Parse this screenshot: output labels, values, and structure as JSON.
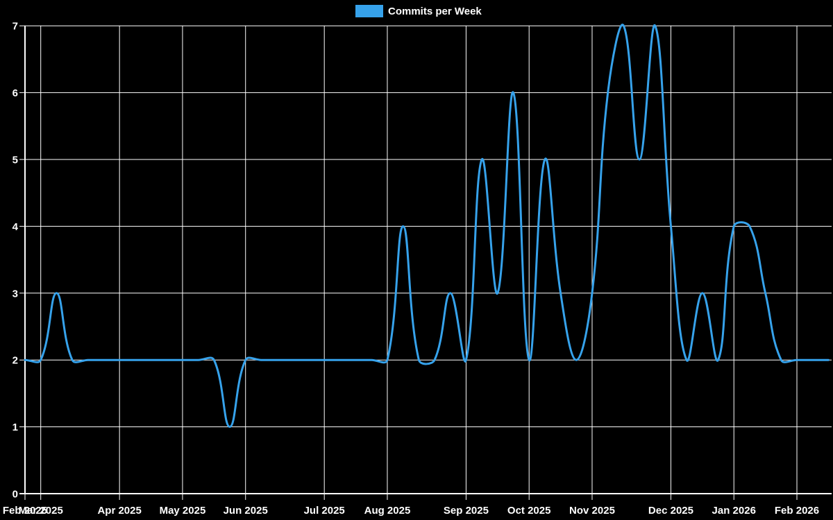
{
  "colors": {
    "background": "#000000",
    "grid": "#ffffff",
    "axis": "#ffffff",
    "text": "#ffffff",
    "line": "#36A2EB"
  },
  "chart_data": {
    "type": "line",
    "title": "",
    "legend_entries": [
      "Commits per Week"
    ],
    "legend_position": "top-center",
    "grid": true,
    "line_style": "smooth-bezier-tension-0.4",
    "x_unit": "week",
    "x_tick_labels": [
      "Feb 2025",
      "Mar 2025",
      "Apr 2025",
      "May 2025",
      "Jun 2025",
      "Jul 2025",
      "Aug 2025",
      "Sep 2025",
      "Oct 2025",
      "Nov 2025",
      "Dec 2025",
      "Jan 2026",
      "Feb 2026"
    ],
    "x_tick_week_index": [
      0,
      1,
      6,
      10,
      14,
      19,
      23,
      28,
      32,
      36,
      41,
      45,
      49
    ],
    "y_ticks": [
      0,
      1,
      2,
      3,
      4,
      5,
      6,
      7
    ],
    "ylim": [
      0,
      7
    ],
    "series": [
      {
        "name": "Commits per Week",
        "values": [
          2,
          2,
          3,
          2,
          2,
          2,
          2,
          2,
          2,
          2,
          2,
          2,
          2,
          1,
          2,
          2,
          2,
          2,
          2,
          2,
          2,
          2,
          2,
          2,
          4,
          2,
          2,
          3,
          2,
          5,
          3,
          6,
          2,
          5,
          3,
          2,
          3,
          6,
          7,
          5,
          7,
          4,
          2,
          3,
          2,
          4,
          4,
          3,
          2,
          2,
          2,
          2
        ]
      }
    ]
  }
}
